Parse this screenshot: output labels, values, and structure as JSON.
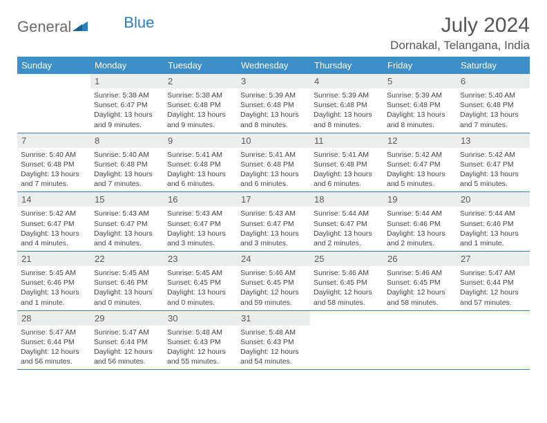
{
  "brand": {
    "part1": "General",
    "part2": "Blue"
  },
  "title": "July 2024",
  "location": "Dornakal, Telangana, India",
  "weekdays": [
    "Sunday",
    "Monday",
    "Tuesday",
    "Wednesday",
    "Thursday",
    "Friday",
    "Saturday"
  ],
  "colors": {
    "header_bg": "#3c8fc9",
    "header_text": "#ffffff",
    "daynum_bg": "#eceded",
    "border": "#3c7fa8",
    "title_text": "#555555",
    "body_text": "#444444",
    "logo_gray": "#6b6b6b",
    "logo_blue": "#2a7fbf"
  },
  "weeks": [
    [
      {
        "n": "",
        "sr": "",
        "ss": "",
        "dl": ""
      },
      {
        "n": "1",
        "sr": "Sunrise: 5:38 AM",
        "ss": "Sunset: 6:47 PM",
        "dl": "Daylight: 13 hours and 9 minutes."
      },
      {
        "n": "2",
        "sr": "Sunrise: 5:38 AM",
        "ss": "Sunset: 6:48 PM",
        "dl": "Daylight: 13 hours and 9 minutes."
      },
      {
        "n": "3",
        "sr": "Sunrise: 5:39 AM",
        "ss": "Sunset: 6:48 PM",
        "dl": "Daylight: 13 hours and 8 minutes."
      },
      {
        "n": "4",
        "sr": "Sunrise: 5:39 AM",
        "ss": "Sunset: 6:48 PM",
        "dl": "Daylight: 13 hours and 8 minutes."
      },
      {
        "n": "5",
        "sr": "Sunrise: 5:39 AM",
        "ss": "Sunset: 6:48 PM",
        "dl": "Daylight: 13 hours and 8 minutes."
      },
      {
        "n": "6",
        "sr": "Sunrise: 5:40 AM",
        "ss": "Sunset: 6:48 PM",
        "dl": "Daylight: 13 hours and 7 minutes."
      }
    ],
    [
      {
        "n": "7",
        "sr": "Sunrise: 5:40 AM",
        "ss": "Sunset: 6:48 PM",
        "dl": "Daylight: 13 hours and 7 minutes."
      },
      {
        "n": "8",
        "sr": "Sunrise: 5:40 AM",
        "ss": "Sunset: 6:48 PM",
        "dl": "Daylight: 13 hours and 7 minutes."
      },
      {
        "n": "9",
        "sr": "Sunrise: 5:41 AM",
        "ss": "Sunset: 6:48 PM",
        "dl": "Daylight: 13 hours and 6 minutes."
      },
      {
        "n": "10",
        "sr": "Sunrise: 5:41 AM",
        "ss": "Sunset: 6:48 PM",
        "dl": "Daylight: 13 hours and 6 minutes."
      },
      {
        "n": "11",
        "sr": "Sunrise: 5:41 AM",
        "ss": "Sunset: 6:48 PM",
        "dl": "Daylight: 13 hours and 6 minutes."
      },
      {
        "n": "12",
        "sr": "Sunrise: 5:42 AM",
        "ss": "Sunset: 6:47 PM",
        "dl": "Daylight: 13 hours and 5 minutes."
      },
      {
        "n": "13",
        "sr": "Sunrise: 5:42 AM",
        "ss": "Sunset: 6:47 PM",
        "dl": "Daylight: 13 hours and 5 minutes."
      }
    ],
    [
      {
        "n": "14",
        "sr": "Sunrise: 5:42 AM",
        "ss": "Sunset: 6:47 PM",
        "dl": "Daylight: 13 hours and 4 minutes."
      },
      {
        "n": "15",
        "sr": "Sunrise: 5:43 AM",
        "ss": "Sunset: 6:47 PM",
        "dl": "Daylight: 13 hours and 4 minutes."
      },
      {
        "n": "16",
        "sr": "Sunrise: 5:43 AM",
        "ss": "Sunset: 6:47 PM",
        "dl": "Daylight: 13 hours and 3 minutes."
      },
      {
        "n": "17",
        "sr": "Sunrise: 5:43 AM",
        "ss": "Sunset: 6:47 PM",
        "dl": "Daylight: 13 hours and 3 minutes."
      },
      {
        "n": "18",
        "sr": "Sunrise: 5:44 AM",
        "ss": "Sunset: 6:47 PM",
        "dl": "Daylight: 13 hours and 2 minutes."
      },
      {
        "n": "19",
        "sr": "Sunrise: 5:44 AM",
        "ss": "Sunset: 6:46 PM",
        "dl": "Daylight: 13 hours and 2 minutes."
      },
      {
        "n": "20",
        "sr": "Sunrise: 5:44 AM",
        "ss": "Sunset: 6:46 PM",
        "dl": "Daylight: 13 hours and 1 minute."
      }
    ],
    [
      {
        "n": "21",
        "sr": "Sunrise: 5:45 AM",
        "ss": "Sunset: 6:46 PM",
        "dl": "Daylight: 13 hours and 1 minute."
      },
      {
        "n": "22",
        "sr": "Sunrise: 5:45 AM",
        "ss": "Sunset: 6:46 PM",
        "dl": "Daylight: 13 hours and 0 minutes."
      },
      {
        "n": "23",
        "sr": "Sunrise: 5:45 AM",
        "ss": "Sunset: 6:45 PM",
        "dl": "Daylight: 13 hours and 0 minutes."
      },
      {
        "n": "24",
        "sr": "Sunrise: 5:46 AM",
        "ss": "Sunset: 6:45 PM",
        "dl": "Daylight: 12 hours and 59 minutes."
      },
      {
        "n": "25",
        "sr": "Sunrise: 5:46 AM",
        "ss": "Sunset: 6:45 PM",
        "dl": "Daylight: 12 hours and 58 minutes."
      },
      {
        "n": "26",
        "sr": "Sunrise: 5:46 AM",
        "ss": "Sunset: 6:45 PM",
        "dl": "Daylight: 12 hours and 58 minutes."
      },
      {
        "n": "27",
        "sr": "Sunrise: 5:47 AM",
        "ss": "Sunset: 6:44 PM",
        "dl": "Daylight: 12 hours and 57 minutes."
      }
    ],
    [
      {
        "n": "28",
        "sr": "Sunrise: 5:47 AM",
        "ss": "Sunset: 6:44 PM",
        "dl": "Daylight: 12 hours and 56 minutes."
      },
      {
        "n": "29",
        "sr": "Sunrise: 5:47 AM",
        "ss": "Sunset: 6:44 PM",
        "dl": "Daylight: 12 hours and 56 minutes."
      },
      {
        "n": "30",
        "sr": "Sunrise: 5:48 AM",
        "ss": "Sunset: 6:43 PM",
        "dl": "Daylight: 12 hours and 55 minutes."
      },
      {
        "n": "31",
        "sr": "Sunrise: 5:48 AM",
        "ss": "Sunset: 6:43 PM",
        "dl": "Daylight: 12 hours and 54 minutes."
      },
      {
        "n": "",
        "sr": "",
        "ss": "",
        "dl": ""
      },
      {
        "n": "",
        "sr": "",
        "ss": "",
        "dl": ""
      },
      {
        "n": "",
        "sr": "",
        "ss": "",
        "dl": ""
      }
    ]
  ]
}
